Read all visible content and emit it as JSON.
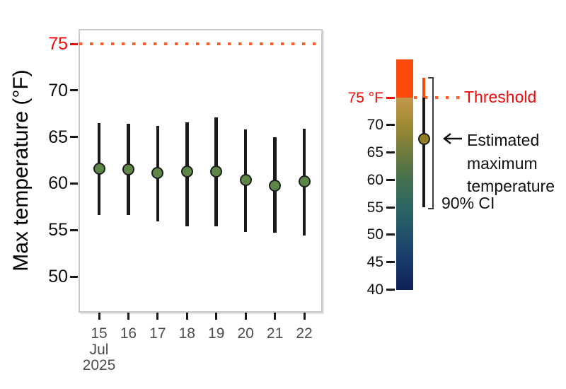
{
  "main_chart": {
    "y_axis": {
      "title": "Max temperature (°F)",
      "ticks": [
        {
          "label": "75",
          "value": 75,
          "red": true
        },
        {
          "label": "70",
          "value": 70,
          "red": false
        },
        {
          "label": "65",
          "value": 65,
          "red": false
        },
        {
          "label": "60",
          "value": 60,
          "red": false
        },
        {
          "label": "55",
          "value": 55,
          "red": false
        },
        {
          "label": "50",
          "value": 50,
          "red": false
        }
      ]
    },
    "x_axis": {
      "tick_labels": [
        "15",
        "16",
        "17",
        "18",
        "19",
        "20",
        "21",
        "22"
      ],
      "month_label": "Jul",
      "year_label": "2025"
    }
  },
  "legend": {
    "threshold_label": "Threshold",
    "estimate_label_lines": [
      "Estimated",
      "maximum",
      "temperature"
    ],
    "ci_label": "90% CI",
    "arrow_icon": "left-arrow",
    "colorbar": {
      "ticks": [
        {
          "label": "75 °F",
          "value": 75,
          "red": true
        },
        {
          "label": "70",
          "value": 70,
          "red": false
        },
        {
          "label": "65",
          "value": 65,
          "red": false
        },
        {
          "label": "60",
          "value": 60,
          "red": false
        },
        {
          "label": "55",
          "value": 55,
          "red": false
        },
        {
          "label": "50",
          "value": 50,
          "red": false
        },
        {
          "label": "45",
          "value": 45,
          "red": false
        },
        {
          "label": "40",
          "value": 40,
          "red": false
        }
      ]
    },
    "demo_key": {
      "estimate": 67.5,
      "ci_low": 55.0,
      "ci_high": 78.6
    }
  },
  "chart_data": {
    "type": "scatter",
    "title": "",
    "xlabel": "",
    "ylabel": "Max temperature (°F)",
    "x_categories": [
      "Jul 15 2025",
      "Jul 16 2025",
      "Jul 17 2025",
      "Jul 18 2025",
      "Jul 19 2025",
      "Jul 20 2025",
      "Jul 21 2025",
      "Jul 22 2025"
    ],
    "series": [
      {
        "name": "Estimated maximum temperature",
        "values": [
          61.6,
          61.5,
          61.1,
          61.3,
          61.3,
          60.4,
          59.8,
          60.2
        ]
      },
      {
        "name": "90% CI lower",
        "values": [
          56.6,
          56.6,
          55.9,
          55.4,
          55.4,
          54.8,
          54.7,
          54.4
        ]
      },
      {
        "name": "90% CI upper",
        "values": [
          66.5,
          66.4,
          66.2,
          66.6,
          67.1,
          65.8,
          65.0,
          65.9
        ]
      }
    ],
    "threshold": {
      "value": 75,
      "label": "Threshold"
    },
    "y_ticks": [
      50,
      55,
      60,
      65,
      70,
      75
    ],
    "ylim": [
      46,
      77
    ],
    "grid": false,
    "legend_position": "right"
  },
  "colors": {
    "threshold_text_red": "#f00a0a",
    "threshold_dots_orange": "#fa5e2b",
    "above_threshold_orange": "#fc4a0d",
    "estimate_point_green": "#5d8747",
    "legend_point_olive": "#8f7d22",
    "errorbar_black": "#1a1a1a",
    "axis_text_gray": "#4d4d4d",
    "panel_border_gray": "#c9c9c9",
    "colorbar_stops": [
      {
        "value": 75,
        "color": "#c4964c"
      },
      {
        "value": 70,
        "color": "#9e8a33"
      },
      {
        "value": 65,
        "color": "#6e7a3c"
      },
      {
        "value": 60,
        "color": "#43704f"
      },
      {
        "value": 55,
        "color": "#2c6663"
      },
      {
        "value": 50,
        "color": "#20516a"
      },
      {
        "value": 45,
        "color": "#17386a"
      },
      {
        "value": 40,
        "color": "#0f2156"
      }
    ]
  }
}
